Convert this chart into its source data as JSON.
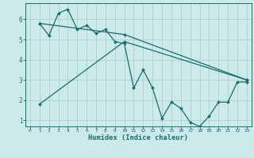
{
  "title": "",
  "xlabel": "Humidex (Indice chaleur)",
  "bg_color": "#cceaea",
  "line_color": "#1a6b6b",
  "grid_color": "#aad0d0",
  "xlim": [
    -0.5,
    23.5
  ],
  "ylim": [
    0.7,
    6.8
  ],
  "yticks": [
    1,
    2,
    3,
    4,
    5,
    6
  ],
  "xticks": [
    0,
    1,
    2,
    3,
    4,
    5,
    6,
    7,
    8,
    9,
    10,
    11,
    12,
    13,
    14,
    15,
    16,
    17,
    18,
    19,
    20,
    21,
    22,
    23
  ],
  "line1_x": [
    1,
    2,
    3,
    4,
    5,
    6,
    7,
    8,
    9,
    10,
    11,
    12,
    13,
    14,
    15,
    16,
    17,
    18,
    19,
    20,
    21,
    22,
    23
  ],
  "line1_y": [
    5.8,
    5.2,
    6.3,
    6.5,
    5.5,
    5.7,
    5.3,
    5.5,
    4.9,
    4.8,
    2.6,
    3.5,
    2.6,
    1.1,
    1.9,
    1.6,
    0.9,
    0.7,
    1.2,
    1.9,
    1.9,
    2.9,
    2.9
  ],
  "line2_x": [
    1,
    10,
    23
  ],
  "line2_y": [
    1.8,
    4.9,
    3.0
  ],
  "line3_x": [
    1,
    10,
    23
  ],
  "line3_y": [
    5.8,
    5.25,
    3.0
  ]
}
